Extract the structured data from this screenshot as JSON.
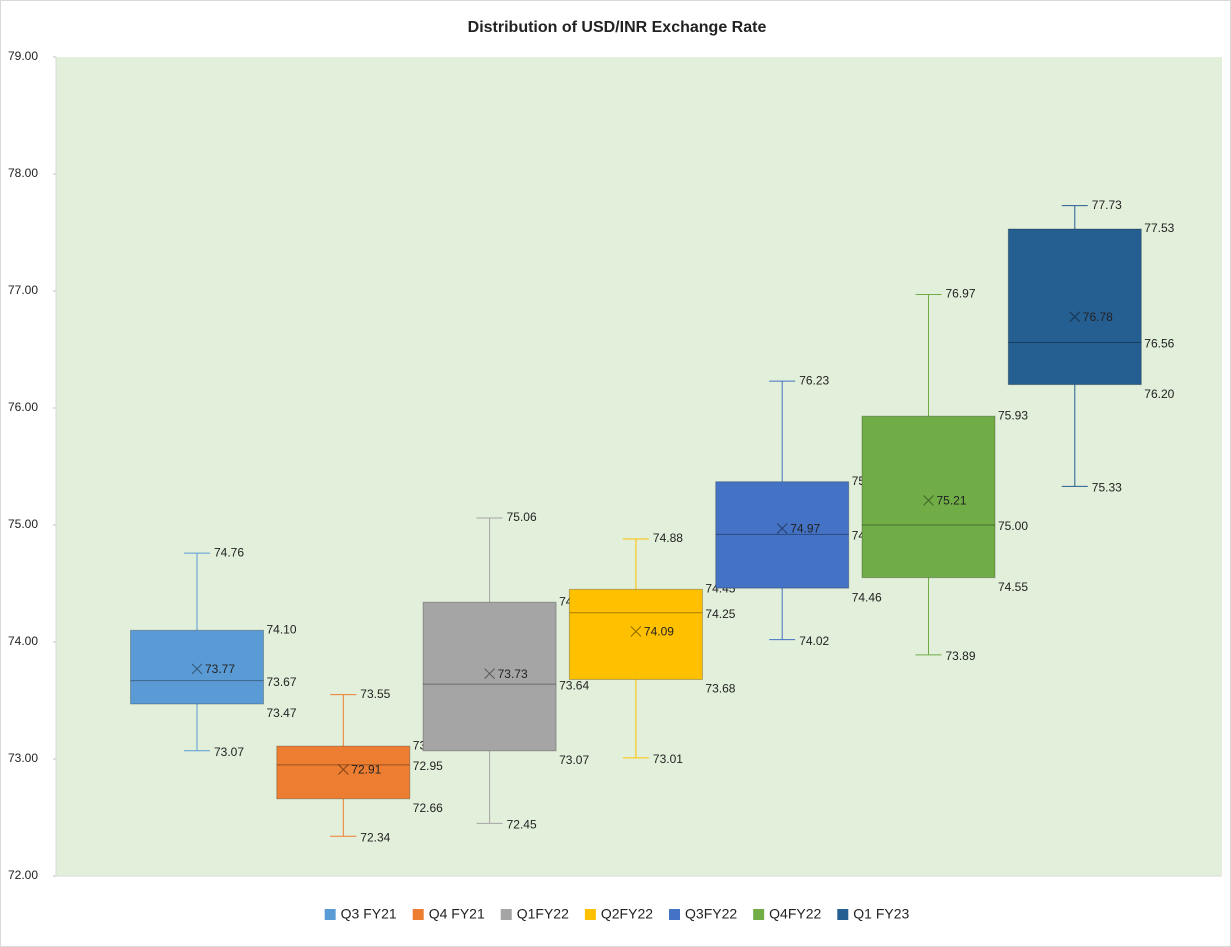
{
  "chart_data": {
    "type": "box",
    "title": "Distribution of USD/INR Exchange Rate",
    "ylim": [
      72,
      79
    ],
    "yticks": [
      {
        "value": 72,
        "label": "72.00"
      },
      {
        "value": 73,
        "label": "73.00"
      },
      {
        "value": 74,
        "label": "74.00"
      },
      {
        "value": 75,
        "label": "75.00"
      },
      {
        "value": 76,
        "label": "76.00"
      },
      {
        "value": 77,
        "label": "77.00"
      },
      {
        "value": 78,
        "label": "78.00"
      },
      {
        "value": 79,
        "label": "79.00"
      }
    ],
    "series": [
      {
        "name": "Q3 FY21",
        "color": "#5b9bd5",
        "min": 73.07,
        "q1": 73.47,
        "median": 73.67,
        "q3": 74.1,
        "max": 74.76,
        "mean": 73.77,
        "value_labels": {
          "min": "73.07",
          "q1": "73.47",
          "median": "73.67",
          "q3": "74.10",
          "max": "74.76",
          "mean": "73.77"
        }
      },
      {
        "name": "Q4 FY21",
        "color": "#ed7d31",
        "min": 72.34,
        "q1": 72.66,
        "median": 72.95,
        "q3": 73.11,
        "max": 73.55,
        "mean": 72.91,
        "value_labels": {
          "min": "72.34",
          "q1": "72.66",
          "median": "72.95",
          "q3": "73.11",
          "max": "73.55",
          "mean": "72.91"
        }
      },
      {
        "name": "Q1FY22",
        "color": "#a5a5a5",
        "min": 72.45,
        "q1": 73.07,
        "median": 73.64,
        "q3": 74.34,
        "max": 75.06,
        "mean": 73.73,
        "value_labels": {
          "min": "72.45",
          "q1": "73.07",
          "median": "73.64",
          "q3": "74.34",
          "max": "75.06",
          "mean": "73.73"
        }
      },
      {
        "name": "Q2FY22",
        "color": "#ffc000",
        "min": 73.01,
        "q1": 73.68,
        "median": 74.25,
        "q3": 74.45,
        "max": 74.88,
        "mean": 74.09,
        "value_labels": {
          "min": "73.01",
          "q1": "73.68",
          "median": "74.25",
          "q3": "74.45",
          "max": "74.88",
          "mean": "74.09"
        }
      },
      {
        "name": "Q3FY22",
        "color": "#4472c4",
        "min": 74.02,
        "q1": 74.46,
        "median": 74.92,
        "q3": 75.37,
        "max": 76.23,
        "mean": 74.97,
        "value_labels": {
          "min": "74.02",
          "q1": "74.46",
          "median": "74.92",
          "q3": "75.37",
          "max": "76.23",
          "mean": "74.97"
        }
      },
      {
        "name": "Q4FY22",
        "color": "#70ad47",
        "min": 73.89,
        "q1": 74.55,
        "median": 75,
        "q3": 75.93,
        "max": 76.97,
        "mean": 75.21,
        "value_labels": {
          "min": "73.89",
          "q1": "74.55",
          "median": "75.00",
          "q3": "75.93",
          "max": "76.97",
          "mean": "75.21"
        }
      },
      {
        "name": "Q1 FY23",
        "color": "#255e91",
        "min": 75.33,
        "q1": 76.2,
        "median": 76.56,
        "q3": 77.53,
        "max": 77.73,
        "mean": 76.78,
        "value_labels": {
          "min": "75.33",
          "q1": "76.20",
          "median": "76.56",
          "q3": "77.53",
          "max": "77.73",
          "mean": "76.78"
        }
      }
    ]
  }
}
